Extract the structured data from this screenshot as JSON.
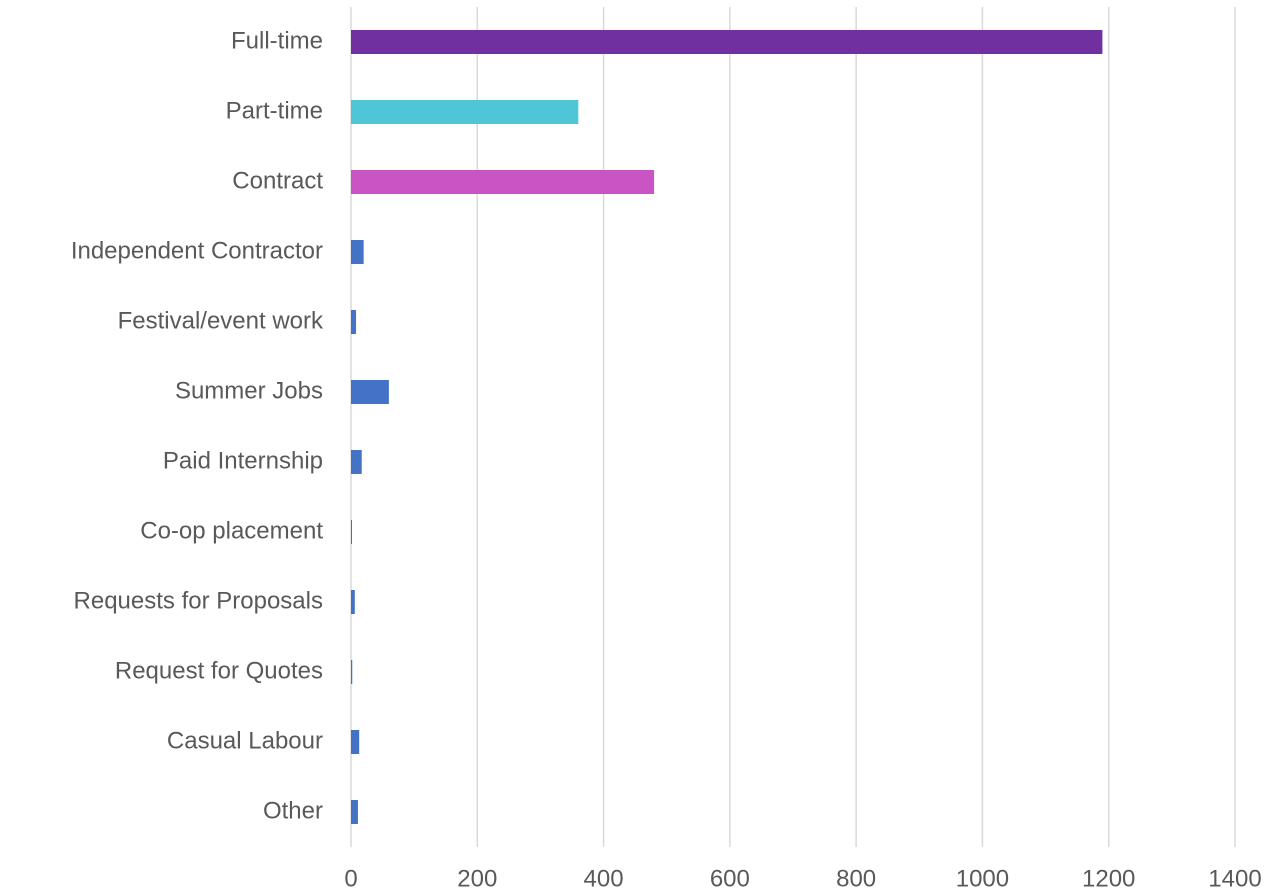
{
  "chart_data": {
    "type": "hbar",
    "categories": [
      "Full-time",
      "Part-time",
      "Contract",
      "Independent Contractor",
      "Festival/event work",
      "Summer Jobs",
      "Paid Internship",
      "Co-op placement",
      "Requests for Proposals",
      "Request for Quotes",
      "Casual Labour",
      "Other"
    ],
    "values": [
      1190,
      360,
      480,
      20,
      8,
      60,
      17,
      1,
      6,
      2,
      13,
      11
    ],
    "colors": [
      "#7030a0",
      "#4ec6d6",
      "#c955c4",
      "#4472c4",
      "#4472c4",
      "#4472c4",
      "#4472c4",
      "#4472c4",
      "#4472c4",
      "#4472c4",
      "#4472c4",
      "#4472c4"
    ],
    "xlim": [
      0,
      1400
    ],
    "xticks": [
      0,
      200,
      400,
      600,
      800,
      1000,
      1200,
      1400
    ],
    "grid": true
  }
}
